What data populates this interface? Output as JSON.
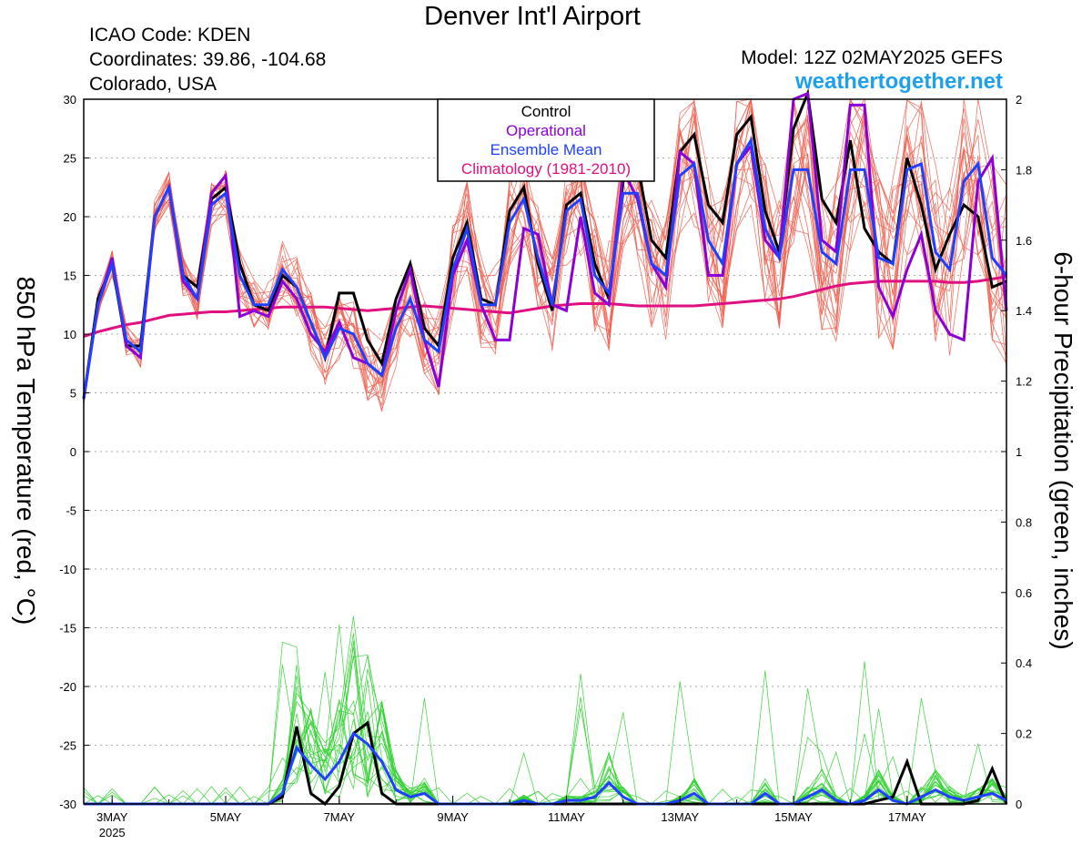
{
  "header": {
    "title": "Denver Int'l Airport",
    "icao": "ICAO Code: KDEN",
    "coordinates": "Coordinates: 39.86, -104.68",
    "region": "Colorado, USA",
    "model": "Model: 12Z 02MAY2025 GEFS",
    "site": "weathertogether.net"
  },
  "chart_data": {
    "type": "line",
    "title": "Denver Int'l Airport",
    "ylabel_left": "850 hPa Temperature (red, °C)",
    "ylabel_right": "6-hour Precipitation (green, inches)",
    "y_left_range": [
      -30,
      30
    ],
    "y_left_ticks": [
      "30",
      "25",
      "20",
      "15",
      "10",
      "5",
      "0",
      "-5",
      "-10",
      "-15",
      "-20",
      "-25",
      "-30"
    ],
    "y_right_range": [
      0,
      2
    ],
    "y_right_ticks": [
      "2",
      "1.8",
      "1.6",
      "1.4",
      "1.2",
      "1",
      "0.8",
      "0.6",
      "0.4",
      "0.2",
      "0"
    ],
    "x_ticks": [
      {
        "day": 3,
        "label": "3MAY",
        "sub": "2025"
      },
      {
        "day": 5,
        "label": "5MAY"
      },
      {
        "day": 7,
        "label": "7MAY"
      },
      {
        "day": 9,
        "label": "9MAY"
      },
      {
        "day": 11,
        "label": "11MAY"
      },
      {
        "day": 13,
        "label": "13MAY"
      },
      {
        "day": 15,
        "label": "15MAY"
      },
      {
        "day": 17,
        "label": "17MAY"
      }
    ],
    "x_range_days": [
      2.5,
      18.75
    ],
    "x_step_days": 0.25,
    "grid": true,
    "legend": {
      "position": "top-center",
      "entries": [
        {
          "label": "Control",
          "color": "#000000"
        },
        {
          "label": "Operational",
          "color": "#8c00d8"
        },
        {
          "label": "Ensemble Mean",
          "color": "#2040ff"
        },
        {
          "label": "Climatology (1981-2010)",
          "color": "#e01080"
        }
      ]
    },
    "colors": {
      "members_temp": "#f06050",
      "members_precip": "#30d030",
      "control": "#000000",
      "operational": "#8c00d8",
      "mean": "#2040ff",
      "climatology": "#e01080"
    },
    "series_temp": {
      "control": [
        4.5,
        13,
        16,
        9,
        9,
        20,
        22.5,
        15,
        14,
        21.5,
        22.5,
        16,
        12.5,
        12,
        15,
        14,
        11,
        8,
        13.5,
        13.5,
        9.5,
        7.5,
        13,
        16,
        10.5,
        9,
        16.5,
        19.5,
        13,
        12.5,
        20.5,
        22.5,
        16,
        12,
        21,
        22,
        16,
        13,
        23,
        24.5,
        18,
        16.5,
        25.5,
        27,
        21,
        19.5,
        27,
        28.5,
        20.5,
        17,
        27.5,
        30.5,
        21.5,
        19.5,
        26.5,
        19,
        17,
        16,
        25,
        21,
        15.5,
        18.5,
        21,
        20,
        14,
        14.5
      ],
      "operational": [
        4.5,
        12.5,
        16.5,
        9,
        8,
        20,
        22.5,
        14.5,
        13,
        22,
        23.5,
        11.5,
        12,
        11.5,
        14.5,
        13,
        10,
        8.5,
        11,
        8,
        7.5,
        6.5,
        12,
        15.5,
        9.5,
        5.5,
        15,
        18,
        12.5,
        9.5,
        9.5,
        19,
        18.5,
        12.5,
        12,
        20,
        13.5,
        12.5,
        24,
        21.5,
        16,
        14,
        25.5,
        24.5,
        15,
        15,
        24.5,
        26,
        18,
        16.5,
        30,
        30.5,
        18,
        17,
        29.5,
        29.5,
        14,
        11.5,
        15.5,
        18.5,
        12,
        10,
        9.5,
        23,
        25,
        12
      ],
      "mean": [
        4.5,
        12.5,
        16,
        9.5,
        8.5,
        20,
        22.5,
        15,
        13,
        21,
        22,
        15,
        12.5,
        12.5,
        15.5,
        14,
        11,
        8,
        10.5,
        10,
        7.5,
        6.5,
        10.5,
        13,
        9.5,
        8.5,
        15.5,
        19,
        12.5,
        12.5,
        19.5,
        21.5,
        16.5,
        12.5,
        20.5,
        21.5,
        15,
        13.5,
        22,
        22,
        16,
        15,
        23.5,
        24.5,
        18,
        16,
        24.5,
        26.5,
        19,
        16.5,
        24,
        24,
        17,
        16,
        24,
        24,
        16.5,
        16,
        24,
        24.5,
        17,
        15.5,
        23,
        24.5,
        16.5,
        15
      ],
      "climatology": [
        9.8,
        10.2,
        10.5,
        10.8,
        11.0,
        11.3,
        11.6,
        11.7,
        11.8,
        11.9,
        11.9,
        12.0,
        12.1,
        12.2,
        12.3,
        12.3,
        12.3,
        12.3,
        12.2,
        12.1,
        12.0,
        12.1,
        12.2,
        12.3,
        12.4,
        12.3,
        12.2,
        12.1,
        12.0,
        11.9,
        11.8,
        12.0,
        12.2,
        12.4,
        12.5,
        12.6,
        12.6,
        12.6,
        12.5,
        12.4,
        12.4,
        12.4,
        12.4,
        12.4,
        12.5,
        12.6,
        12.7,
        12.8,
        12.9,
        13.0,
        13.2,
        13.5,
        13.8,
        14.1,
        14.3,
        14.4,
        14.5,
        14.5,
        14.5,
        14.5,
        14.5,
        14.4,
        14.4,
        14.5,
        14.7,
        14.9
      ]
    },
    "series_precip": {
      "control": [
        0,
        0,
        0,
        0,
        0,
        0,
        0,
        0,
        0,
        0,
        0,
        0,
        0,
        0,
        0.02,
        0.22,
        0.03,
        0,
        0.05,
        0.2,
        0.23,
        0.03,
        0,
        0,
        0,
        0,
        0,
        0,
        0,
        0,
        0,
        0,
        0,
        0,
        0,
        0,
        0,
        0,
        0,
        0,
        0,
        0,
        0,
        0,
        0,
        0,
        0,
        0,
        0,
        0,
        0,
        0,
        0,
        0,
        0,
        0,
        0.01,
        0.02,
        0.12,
        0,
        0,
        0,
        0,
        0.01,
        0.1,
        0
      ],
      "mean": [
        0,
        0,
        0,
        0,
        0,
        0,
        0,
        0,
        0,
        0,
        0,
        0,
        0,
        0,
        0.03,
        0.16,
        0.11,
        0.07,
        0.12,
        0.2,
        0.17,
        0.12,
        0.04,
        0.02,
        0.03,
        0,
        0,
        0,
        0,
        0,
        0,
        0.01,
        0,
        0,
        0.01,
        0.01,
        0.02,
        0.06,
        0.02,
        0,
        0,
        0,
        0.01,
        0.03,
        0,
        0,
        0,
        0,
        0.03,
        0,
        0,
        0.02,
        0.04,
        0.01,
        0,
        0.01,
        0.04,
        0.01,
        0,
        0.02,
        0.04,
        0.02,
        0.01,
        0.02,
        0.03,
        0.01
      ]
    }
  }
}
